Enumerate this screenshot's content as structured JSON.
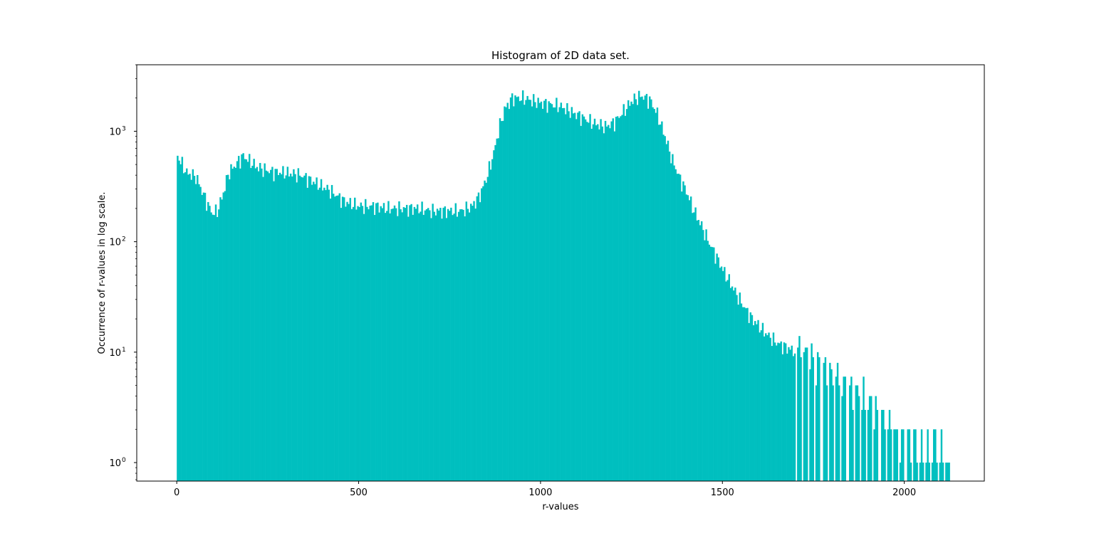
{
  "chart_data": {
    "type": "bar",
    "title": "Histogram of 2D data set.",
    "xlabel": "r-values",
    "ylabel": "Occurrence of r-values in log scale.",
    "xlim": [
      -110,
      2220
    ],
    "ylim": [
      0.68,
      4000
    ],
    "yscale": "log",
    "x_ticks": [
      0,
      500,
      1000,
      1500,
      2000
    ],
    "x_tick_labels": [
      "0",
      "500",
      "1000",
      "1500",
      "2000"
    ],
    "y_ticks": [
      1,
      10,
      100,
      1000
    ],
    "y_tick_labels": [
      "10",
      "10",
      "10",
      "10"
    ],
    "y_tick_exponents": [
      "0",
      "1",
      "2",
      "3"
    ],
    "grid": false,
    "bar_color": "#00bfbf",
    "series": [
      {
        "values": [
          {
            "x": 0,
            "y": 600
          },
          {
            "x": 25,
            "y": 420
          },
          {
            "x": 50,
            "y": 390
          },
          {
            "x": 65,
            "y": 300
          },
          {
            "x": 80,
            "y": 230
          },
          {
            "x": 95,
            "y": 180
          },
          {
            "x": 110,
            "y": 190
          },
          {
            "x": 125,
            "y": 270
          },
          {
            "x": 140,
            "y": 420
          },
          {
            "x": 160,
            "y": 500
          },
          {
            "x": 180,
            "y": 600
          },
          {
            "x": 220,
            "y": 470
          },
          {
            "x": 260,
            "y": 430
          },
          {
            "x": 300,
            "y": 420
          },
          {
            "x": 340,
            "y": 400
          },
          {
            "x": 380,
            "y": 340
          },
          {
            "x": 420,
            "y": 290
          },
          {
            "x": 460,
            "y": 230
          },
          {
            "x": 500,
            "y": 210
          },
          {
            "x": 540,
            "y": 210
          },
          {
            "x": 580,
            "y": 200
          },
          {
            "x": 620,
            "y": 200
          },
          {
            "x": 660,
            "y": 200
          },
          {
            "x": 700,
            "y": 190
          },
          {
            "x": 740,
            "y": 190
          },
          {
            "x": 780,
            "y": 190
          },
          {
            "x": 810,
            "y": 210
          },
          {
            "x": 830,
            "y": 260
          },
          {
            "x": 850,
            "y": 380
          },
          {
            "x": 870,
            "y": 650
          },
          {
            "x": 885,
            "y": 1100
          },
          {
            "x": 900,
            "y": 1600
          },
          {
            "x": 920,
            "y": 2000
          },
          {
            "x": 950,
            "y": 2000
          },
          {
            "x": 1000,
            "y": 1800
          },
          {
            "x": 1050,
            "y": 1700
          },
          {
            "x": 1100,
            "y": 1400
          },
          {
            "x": 1140,
            "y": 1200
          },
          {
            "x": 1175,
            "y": 1100
          },
          {
            "x": 1200,
            "y": 1200
          },
          {
            "x": 1225,
            "y": 1500
          },
          {
            "x": 1250,
            "y": 1900
          },
          {
            "x": 1275,
            "y": 2100
          },
          {
            "x": 1300,
            "y": 1900
          },
          {
            "x": 1320,
            "y": 1400
          },
          {
            "x": 1340,
            "y": 900
          },
          {
            "x": 1360,
            "y": 550
          },
          {
            "x": 1380,
            "y": 380
          },
          {
            "x": 1400,
            "y": 280
          },
          {
            "x": 1420,
            "y": 190
          },
          {
            "x": 1440,
            "y": 140
          },
          {
            "x": 1460,
            "y": 100
          },
          {
            "x": 1480,
            "y": 75
          },
          {
            "x": 1500,
            "y": 55
          },
          {
            "x": 1520,
            "y": 42
          },
          {
            "x": 1540,
            "y": 32
          },
          {
            "x": 1560,
            "y": 25
          },
          {
            "x": 1580,
            "y": 20
          },
          {
            "x": 1600,
            "y": 17
          },
          {
            "x": 1625,
            "y": 14
          },
          {
            "x": 1650,
            "y": 12
          },
          {
            "x": 1675,
            "y": 11
          },
          {
            "x": 1700,
            "y": 10
          },
          {
            "x": 1725,
            "y": 9
          },
          {
            "x": 1750,
            "y": 7
          },
          {
            "x": 1775,
            "y": 6
          },
          {
            "x": 1800,
            "y": 5.5
          },
          {
            "x": 1825,
            "y": 5
          },
          {
            "x": 1850,
            "y": 4
          },
          {
            "x": 1875,
            "y": 3.5
          },
          {
            "x": 1900,
            "y": 3
          },
          {
            "x": 1925,
            "y": 2.5
          },
          {
            "x": 1950,
            "y": 2
          },
          {
            "x": 1975,
            "y": 1.7
          },
          {
            "x": 2000,
            "y": 1.5
          },
          {
            "x": 2030,
            "y": 1.3
          },
          {
            "x": 2060,
            "y": 1.2
          },
          {
            "x": 2090,
            "y": 1.1
          },
          {
            "x": 2120,
            "y": 1.0
          }
        ]
      }
    ]
  }
}
